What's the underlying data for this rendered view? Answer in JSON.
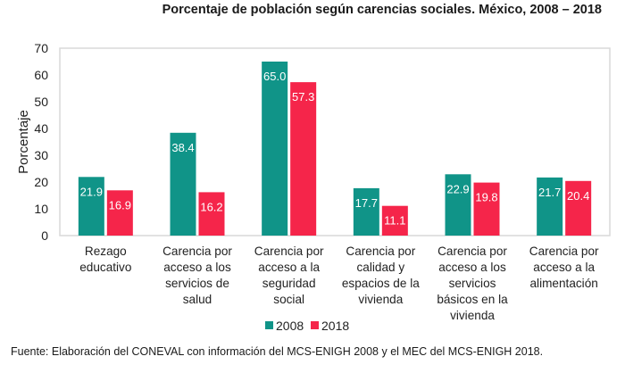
{
  "chart_data": {
    "type": "bar",
    "title": "Porcentaje de población según carencias sociales. México, 2008 – 2018",
    "xlabel": "",
    "ylabel": "Porcentaje",
    "ylim": [
      0,
      70
    ],
    "yticks": [
      0,
      10,
      20,
      30,
      40,
      50,
      60,
      70
    ],
    "grid": false,
    "legend_position": "bottom",
    "categories": [
      [
        "Rezago",
        "educativo"
      ],
      [
        "Carencia por",
        "acceso a los",
        "servicios de",
        "salud"
      ],
      [
        "Carencia por",
        "acceso a la",
        "seguridad",
        "social"
      ],
      [
        "Carencia por",
        "calidad y",
        "espacios de la",
        "vivienda"
      ],
      [
        "Carencia por",
        "acceso a los",
        "servicios",
        "básicos en la",
        "vivienda"
      ],
      [
        "Carencia por",
        "acceso a la",
        "alimentación"
      ]
    ],
    "series": [
      {
        "name": "2008",
        "color": "#109488",
        "values": [
          21.9,
          38.4,
          65.0,
          17.7,
          22.9,
          21.7
        ],
        "labels": [
          "21.9",
          "38.4",
          "65.0",
          "17.7",
          "22.9",
          "21.7"
        ]
      },
      {
        "name": "2018",
        "color": "#f5254a",
        "values": [
          16.9,
          16.2,
          57.3,
          11.1,
          19.8,
          20.4
        ],
        "labels": [
          "16.9",
          "16.2",
          "57.3",
          "11.1",
          "19.8",
          "20.4"
        ]
      }
    ]
  },
  "source": "Fuente: Elaboración del CONEVAL con información del MCS-ENIGH 2008 y el MEC del MCS-ENIGH 2018.",
  "frame_color": "#d9d9d9"
}
